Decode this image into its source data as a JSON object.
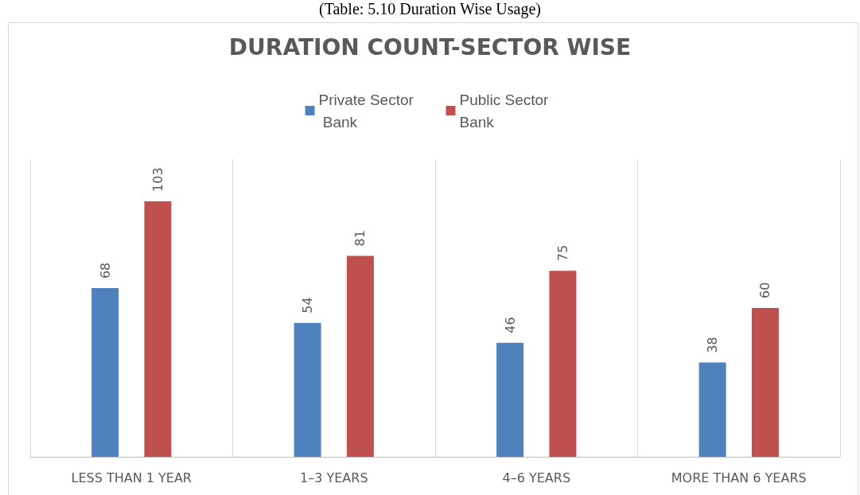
{
  "chart_data": {
    "type": "bar",
    "title": "DURATION COUNT-SECTOR WISE",
    "annotations": [
      "(Table: 5.10 Duration Wise Usage)"
    ],
    "categories": [
      "LESS THAN 1 YEAR",
      "1–3 YEARS",
      "4–6 YEARS",
      "MORE THAN 6 YEARS"
    ],
    "series": [
      {
        "name": "Private Sector Bank",
        "color": "#4f81bd",
        "values": [
          68,
          54,
          46,
          38
        ]
      },
      {
        "name": "Public Sector Bank",
        "color": "#c0504d",
        "values": [
          103,
          81,
          75,
          60
        ]
      }
    ],
    "data_labels": true,
    "legend": "top",
    "grid": "x",
    "tick_labels": "x"
  }
}
